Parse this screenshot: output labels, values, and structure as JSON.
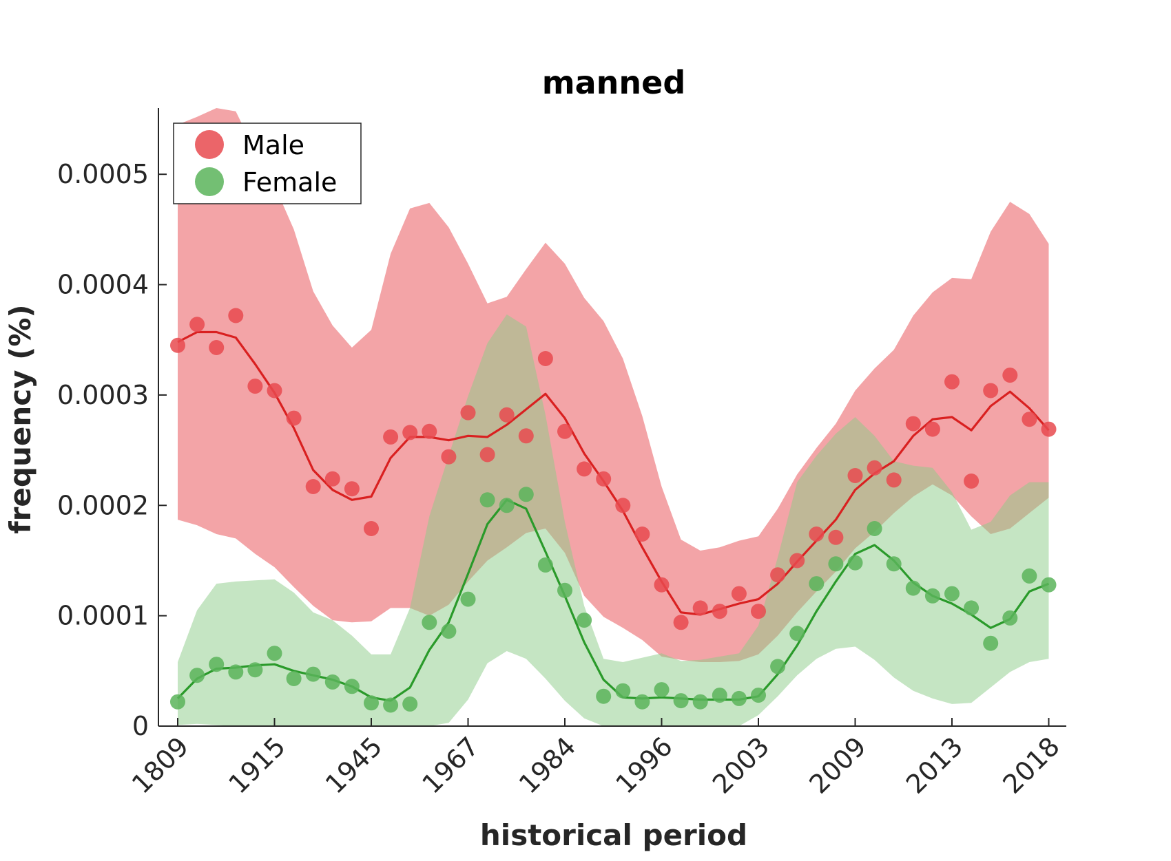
{
  "chart_data": {
    "type": "line",
    "title": "manned",
    "xlabel": "historical period",
    "ylabel": "frequency (%)",
    "ylim": [
      0,
      0.00056
    ],
    "y_ticks": [
      {
        "value": 0,
        "label": "0"
      },
      {
        "value": 0.0001,
        "label": "0.0001"
      },
      {
        "value": 0.0002,
        "label": "0.0002"
      },
      {
        "value": 0.0003,
        "label": "0.0003"
      },
      {
        "value": 0.0004,
        "label": "0.0004"
      },
      {
        "value": 0.0005,
        "label": "0.0005"
      }
    ],
    "x_ticks": [
      {
        "index": 0,
        "label": "1809"
      },
      {
        "index": 5,
        "label": "1915"
      },
      {
        "index": 10,
        "label": "1945"
      },
      {
        "index": 15,
        "label": "1967"
      },
      {
        "index": 20,
        "label": "1984"
      },
      {
        "index": 25,
        "label": "1996"
      },
      {
        "index": 30,
        "label": "2003"
      },
      {
        "index": 35,
        "label": "2009"
      },
      {
        "index": 40,
        "label": "2013"
      },
      {
        "index": 45,
        "label": "2018"
      }
    ],
    "legend_position": "top-left",
    "grid": false,
    "series": [
      {
        "name": "Male",
        "color": "#e84a4f",
        "line_color": "#d92020",
        "band_color": "#e84a4f",
        "points": [
          0.000345,
          0.000364,
          0.000343,
          0.000372,
          0.000308,
          0.000304,
          0.000279,
          0.000217,
          0.000224,
          0.000215,
          0.000179,
          0.000262,
          0.000266,
          0.000267,
          0.000244,
          0.000284,
          0.000246,
          0.000282,
          0.000263,
          0.000333,
          0.000267,
          0.000233,
          0.000224,
          0.0002,
          0.000174,
          0.000128,
          9.4e-05,
          0.000107,
          0.000104,
          0.00012,
          0.000104,
          0.000137,
          0.00015,
          0.000174,
          0.000171,
          0.000227,
          0.000234,
          0.000223,
          0.000274,
          0.000269,
          0.000312,
          0.000222,
          0.000304,
          0.000318,
          0.000278,
          0.000269
        ],
        "trend": [
          0.000348,
          0.000357,
          0.000357,
          0.000352,
          0.000328,
          0.000302,
          0.00027,
          0.000232,
          0.000214,
          0.000205,
          0.000208,
          0.000243,
          0.000262,
          0.000262,
          0.000259,
          0.000263,
          0.000262,
          0.000273,
          0.000287,
          0.000301,
          0.000279,
          0.000247,
          0.000222,
          0.000195,
          0.000162,
          0.000131,
          0.000103,
          0.000101,
          0.000106,
          0.000111,
          0.000115,
          0.000129,
          0.000149,
          0.000168,
          0.000187,
          0.000214,
          0.000229,
          0.00024,
          0.000263,
          0.000278,
          0.00028,
          0.000268,
          0.00029,
          0.000303,
          0.000288,
          0.000268
        ],
        "band_upper": [
          0.000545,
          0.000552,
          0.00056,
          0.000557,
          0.000521,
          0.00049,
          0.00045,
          0.000394,
          0.000363,
          0.000343,
          0.000359,
          0.000428,
          0.000469,
          0.000474,
          0.000452,
          0.000419,
          0.000383,
          0.000389,
          0.000414,
          0.000438,
          0.000419,
          0.000388,
          0.000367,
          0.000333,
          0.000281,
          0.000217,
          0.000169,
          0.000159,
          0.000162,
          0.000168,
          0.000172,
          0.000197,
          0.000228,
          0.000252,
          0.000274,
          0.000304,
          0.000324,
          0.000341,
          0.000372,
          0.000393,
          0.000406,
          0.000405,
          0.000448,
          0.000475,
          0.000464,
          0.000437
        ],
        "band_lower": [
          0.000187,
          0.000182,
          0.000174,
          0.00017,
          0.000156,
          0.000144,
          0.000126,
          0.000109,
          9.6e-05,
          9.4e-05,
          9.5e-05,
          0.000107,
          0.000107,
          0.0001,
          0.00011,
          0.000131,
          0.00015,
          0.000162,
          0.000175,
          0.000179,
          0.000157,
          0.000118,
          9.9e-05,
          8.9e-05,
          7.8e-05,
          6.3e-05,
          6e-05,
          5.8e-05,
          5.8e-05,
          5.9e-05,
          6.5e-05,
          8.2e-05,
          0.000103,
          0.000122,
          0.00014,
          0.000161,
          0.000176,
          0.000193,
          0.000208,
          0.000219,
          0.000209,
          0.00019,
          0.000174,
          0.000179,
          0.000193,
          0.000207
        ]
      },
      {
        "name": "Female",
        "color": "#5ab45a",
        "line_color": "#2a9a2a",
        "band_color": "#8ccc87",
        "points": [
          2.2e-05,
          4.6e-05,
          5.6e-05,
          4.9e-05,
          5.1e-05,
          6.6e-05,
          4.3e-05,
          4.7e-05,
          4e-05,
          3.6e-05,
          2.1e-05,
          1.9e-05,
          2e-05,
          9.4e-05,
          8.6e-05,
          0.000115,
          0.000205,
          0.0002,
          0.00021,
          0.000146,
          0.000123,
          9.6e-05,
          2.7e-05,
          3.2e-05,
          2.2e-05,
          3.3e-05,
          2.3e-05,
          2.2e-05,
          2.8e-05,
          2.5e-05,
          2.8e-05,
          5.4e-05,
          8.4e-05,
          0.000129,
          0.000147,
          0.000148,
          0.000179,
          0.000147,
          0.000125,
          0.000118,
          0.00012,
          0.000107,
          7.5e-05,
          9.8e-05,
          0.000136,
          0.000128
        ],
        "trend": [
          2.5e-05,
          4.3e-05,
          5.2e-05,
          5.3e-05,
          5.5e-05,
          5.6e-05,
          5e-05,
          4.6e-05,
          4.2e-05,
          3.6e-05,
          2.6e-05,
          2.3e-05,
          3.5e-05,
          6.9e-05,
          9.4e-05,
          0.000138,
          0.000183,
          0.000205,
          0.000197,
          0.000158,
          0.000118,
          7.6e-05,
          4.2e-05,
          2.6e-05,
          2.5e-05,
          2.6e-05,
          2.5e-05,
          2.4e-05,
          2.4e-05,
          2.4e-05,
          2.7e-05,
          4.7e-05,
          7.3e-05,
          0.000104,
          0.000131,
          0.000156,
          0.000164,
          0.00015,
          0.00013,
          0.000118,
          0.000111,
          0.000101,
          8.9e-05,
          9.7e-05,
          0.000122,
          0.000129
        ],
        "band_upper": [
          5.8e-05,
          0.000105,
          0.000129,
          0.000131,
          0.000132,
          0.000133,
          0.000121,
          0.000103,
          9.6e-05,
          8.2e-05,
          6.5e-05,
          6.5e-05,
          0.000107,
          0.00019,
          0.000245,
          0.000299,
          0.000347,
          0.000373,
          0.000362,
          0.000282,
          0.000185,
          0.000109,
          6.1e-05,
          5.8e-05,
          6.2e-05,
          6.6e-05,
          5.9e-05,
          6e-05,
          6.3e-05,
          6.6e-05,
          9.1e-05,
          0.000153,
          0.000221,
          0.000245,
          0.000265,
          0.00028,
          0.000263,
          0.00024,
          0.000236,
          0.000234,
          0.000212,
          0.000178,
          0.000185,
          0.000209,
          0.000221,
          0.000221
        ],
        "band_lower": [
          1e-06,
          2e-06,
          1e-06,
          0.0,
          0.0,
          0.0,
          0.0,
          0.0,
          0.0,
          0.0,
          0.0,
          0.0,
          0.0,
          0.0,
          3e-06,
          2.4e-05,
          5.7e-05,
          6.8e-05,
          6.1e-05,
          4.3e-05,
          2.3e-05,
          7e-06,
          0.0,
          0.0,
          0.0,
          0.0,
          0.0,
          0.0,
          0.0,
          0.0,
          1e-05,
          2.7e-05,
          4.6e-05,
          6.1e-05,
          7e-05,
          7.2e-05,
          6e-05,
          4.4e-05,
          3.2e-05,
          2.5e-05,
          2e-05,
          2.1e-05,
          3.5e-05,
          4.9e-05,
          5.8e-05,
          6.1e-05
        ]
      }
    ]
  }
}
